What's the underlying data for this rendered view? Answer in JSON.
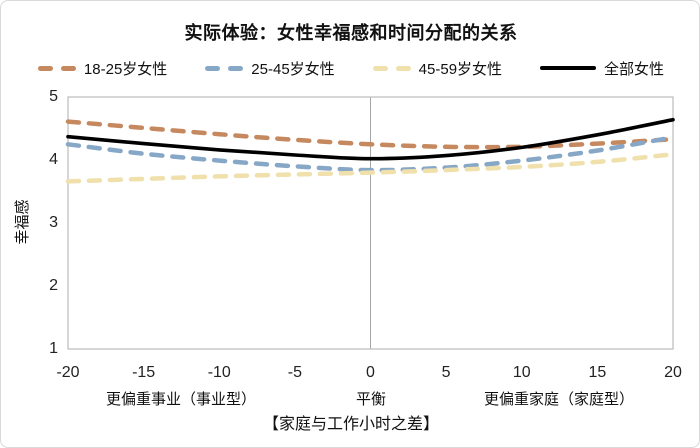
{
  "title": "实际体验：女性幸福感和时间分配的关系",
  "colors": {
    "frame": "#bfbfbf",
    "gridline": "#a6a6a6",
    "text": "#111111"
  },
  "chart_data": {
    "type": "line",
    "title": "实际体验：女性幸福感和时间分配的关系",
    "x": [
      -20,
      -15,
      -10,
      -5,
      0,
      5,
      10,
      15,
      20
    ],
    "xticks": [
      "-20",
      "-15",
      "-10",
      "-5",
      "0",
      "5",
      "10",
      "15",
      "20"
    ],
    "series": [
      {
        "name": "18-25岁女性",
        "color": "#C6895F",
        "dash": true,
        "values": [
          4.61,
          4.51,
          4.41,
          4.32,
          4.25,
          4.21,
          4.21,
          4.26,
          4.33
        ]
      },
      {
        "name": "25-45岁女性",
        "color": "#87A7C7",
        "dash": true,
        "values": [
          4.25,
          4.1,
          3.99,
          3.9,
          3.84,
          3.88,
          3.99,
          4.15,
          4.36
        ]
      },
      {
        "name": "45-59岁女性",
        "color": "#EFE0AC",
        "dash": true,
        "values": [
          3.66,
          3.7,
          3.74,
          3.77,
          3.8,
          3.84,
          3.89,
          3.97,
          4.09
        ]
      },
      {
        "name": "全部女性",
        "color": "#000000",
        "dash": false,
        "values": [
          4.37,
          4.26,
          4.16,
          4.08,
          4.02,
          4.07,
          4.2,
          4.4,
          4.64
        ]
      }
    ],
    "ylabel": "幸福感",
    "xlabel": "【家庭与工作小时之差】",
    "x_region_labels": [
      "更偏重事业（事业型）",
      "平衡",
      "更偏重家庭（家庭型）"
    ],
    "ylim": [
      1,
      5
    ],
    "yticks": [
      "5",
      "4",
      "3",
      "2",
      "1"
    ],
    "xlim": [
      -20,
      20
    ],
    "gridline_at_x": 0,
    "legend_position": "top",
    "grid": "single-vertical-line-at-zero"
  }
}
